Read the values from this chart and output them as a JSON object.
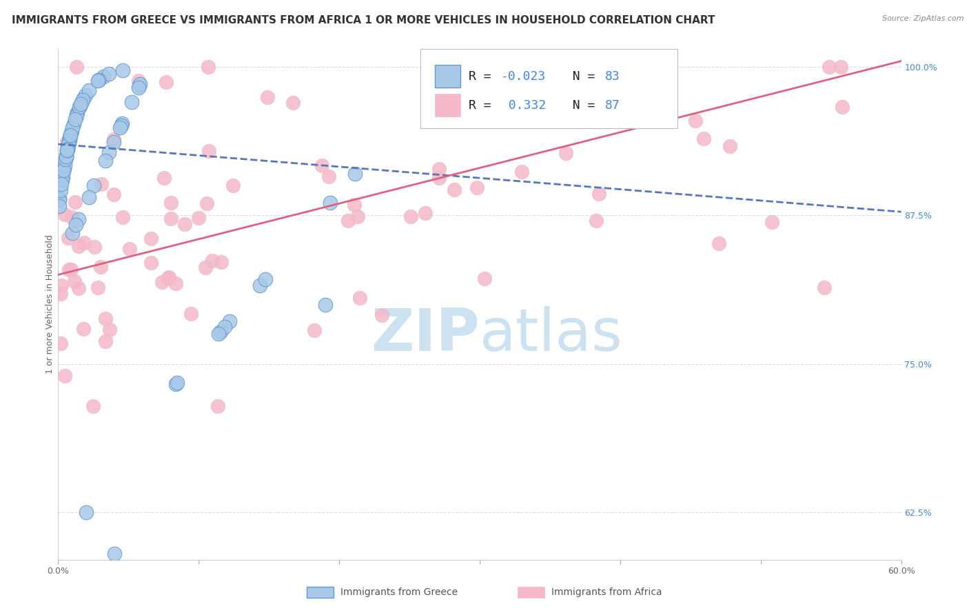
{
  "title": "IMMIGRANTS FROM GREECE VS IMMIGRANTS FROM AFRICA 1 OR MORE VEHICLES IN HOUSEHOLD CORRELATION CHART",
  "source": "Source: ZipAtlas.com",
  "ylabel": "1 or more Vehicles in Household",
  "xlim": [
    0.0,
    0.6
  ],
  "ylim": [
    0.585,
    1.015
  ],
  "yticks_right": [
    0.625,
    0.75,
    0.875,
    1.0
  ],
  "ytick_labels_right": [
    "62.5%",
    "75.0%",
    "87.5%",
    "100.0%"
  ],
  "r_greece": -0.023,
  "n_greece": 83,
  "r_africa": 0.332,
  "n_africa": 87,
  "color_greece_fill": "#a8c8e8",
  "color_greece_edge": "#6699cc",
  "color_africa_fill": "#f4b8c8",
  "color_africa_edge": "#f4b8c8",
  "color_greece_line": "#5577bb",
  "color_africa_line": "#e06080",
  "legend_label_greece": "Immigrants from Greece",
  "legend_label_africa": "Immigrants from Africa",
  "background_color": "#ffffff",
  "grid_color": "#cccccc",
  "watermark_color": "#ddeeff",
  "title_fontsize": 11,
  "axis_label_fontsize": 9,
  "tick_fontsize": 9,
  "legend_fontsize": 13,
  "greece_line_y0": 0.935,
  "greece_line_y1": 0.878,
  "africa_line_y0": 0.825,
  "africa_line_y1": 1.005
}
